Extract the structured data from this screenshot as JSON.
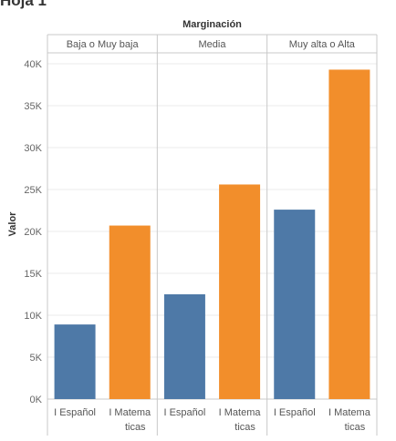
{
  "sheet_title": "Hoja 1",
  "header_title": "Marginación",
  "y_axis_title": "Valor",
  "y_ticks": [
    "0K",
    "5K",
    "10K",
    "15K",
    "20K",
    "25K",
    "30K",
    "35K",
    "40K"
  ],
  "colors": {
    "Español": "#4e79a7",
    "Matematicas": "#f28e2b",
    "grid": "#ebebeb",
    "border": "#c8c8c8"
  },
  "chart_data": {
    "type": "bar",
    "title": "Marginación",
    "ylabel": "Valor",
    "ylim": [
      0,
      42000
    ],
    "panes": [
      "Baja o Muy baja",
      "Media",
      "Muy alta o Alta"
    ],
    "categories": [
      "Español",
      "Matematicas"
    ],
    "category_labels": [
      [
        "I Español"
      ],
      [
        "I Matema",
        "ticas"
      ]
    ],
    "series": [
      {
        "pane": "Baja o Muy baja",
        "values": [
          8900,
          20700
        ]
      },
      {
        "pane": "Media",
        "values": [
          12500,
          25600
        ]
      },
      {
        "pane": "Muy alta o Alta",
        "values": [
          22600,
          39300
        ]
      }
    ]
  }
}
